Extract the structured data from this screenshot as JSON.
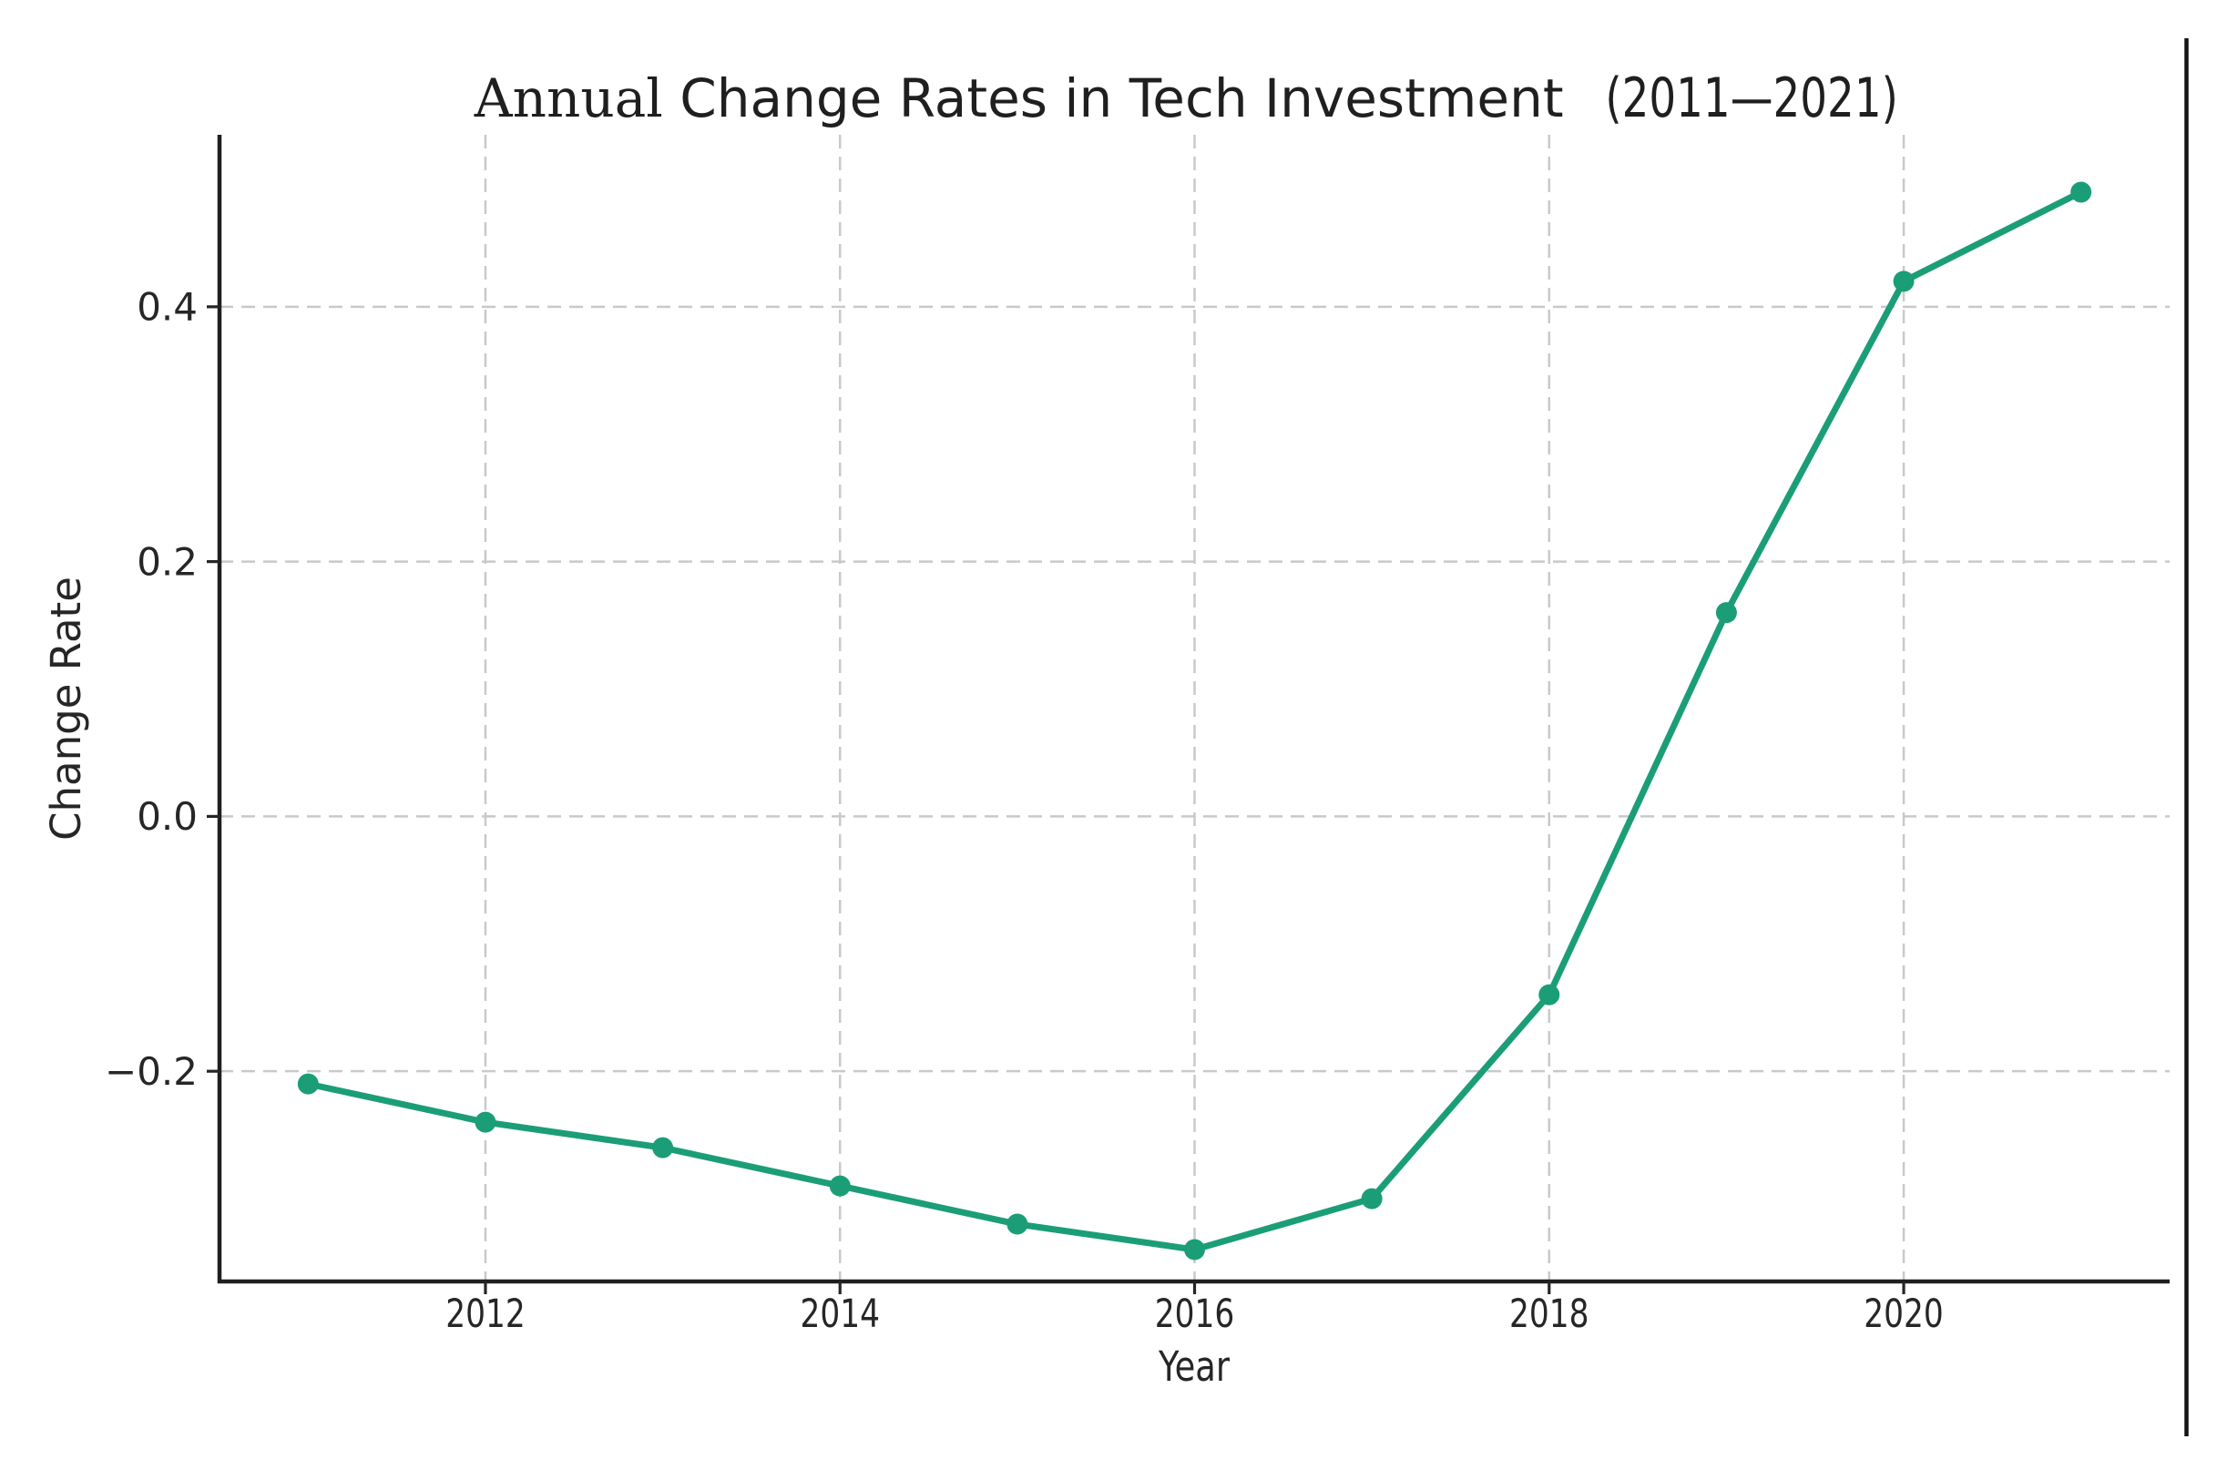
{
  "figure": {
    "background": "#ffffff",
    "title_part_serif": "Annual",
    "title_part_sans": " Change Rates in Tech Investment ",
    "title_part_condensed": "(2011—2021)"
  },
  "chart_data": {
    "type": "line",
    "title": "Annual Change Rates in Tech Investment (2011—2021)",
    "xlabel": "Year",
    "ylabel": "Change Rate",
    "x": [
      2011,
      2012,
      2013,
      2014,
      2015,
      2016,
      2017,
      2018,
      2019,
      2020,
      2021
    ],
    "series": [
      {
        "name": "Change Rate",
        "values": [
          -0.21,
          -0.24,
          -0.26,
          -0.29,
          -0.32,
          -0.34,
          -0.3,
          -0.14,
          0.16,
          0.42,
          0.49
        ],
        "color": "#1b9e77",
        "marker": "circle",
        "line_width": 7,
        "marker_radius": 11.5
      }
    ],
    "xticks": [
      2012,
      2014,
      2016,
      2018,
      2020
    ],
    "xtick_labels": [
      "2012",
      "2014",
      "2016",
      "2018",
      "2020"
    ],
    "yticks": [
      0.4,
      0.2,
      0.0,
      -0.2
    ],
    "ytick_labels": [
      "0.4",
      "0.2",
      "0.0",
      "−0.2"
    ],
    "xlim": [
      2010.5,
      2021.5
    ],
    "ylim": [
      -0.365,
      0.535
    ],
    "grid": {
      "visible": true,
      "style": "dashed",
      "color": "#c9c9c9",
      "axes": "both"
    },
    "legend": {
      "visible": false
    },
    "spines": {
      "left": true,
      "bottom": true,
      "top": false,
      "right": false,
      "color": "#1f1f1f"
    },
    "tick_color": "#262626"
  },
  "artifacts": {
    "right_edge_line": {
      "color": "#141414",
      "note": "vertical frame edge near right border"
    }
  }
}
